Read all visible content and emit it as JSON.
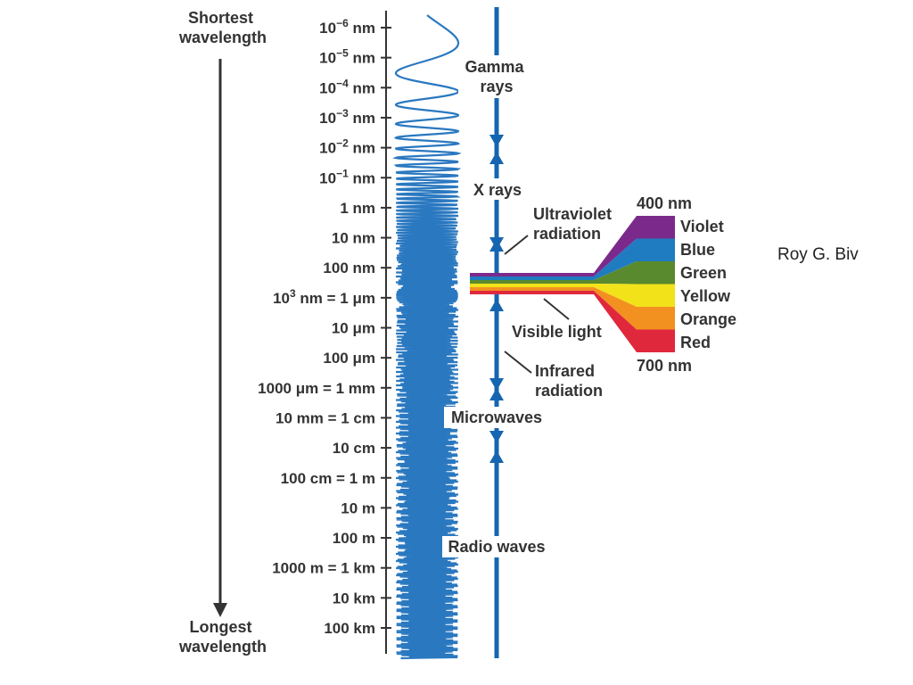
{
  "axis": {
    "top_label": [
      "Shortest",
      "wavelength"
    ],
    "bottom_label": [
      "Longest",
      "wavelength"
    ],
    "ticks": [
      {
        "base": "10",
        "exp": "−6",
        "unit": " nm"
      },
      {
        "base": "10",
        "exp": "−5",
        "unit": " nm"
      },
      {
        "base": "10",
        "exp": "−4",
        "unit": " nm"
      },
      {
        "base": "10",
        "exp": "−3",
        "unit": " nm"
      },
      {
        "base": "10",
        "exp": "−2",
        "unit": " nm"
      },
      {
        "base": "10",
        "exp": "−1",
        "unit": " nm"
      },
      {
        "text": "1 nm"
      },
      {
        "text": "10 nm"
      },
      {
        "text": "100 nm"
      },
      {
        "base": "10",
        "exp": "3",
        "unit": " nm = 1 μm"
      },
      {
        "text": "10 μm"
      },
      {
        "text": "100 μm"
      },
      {
        "text": "1000 μm = 1 mm"
      },
      {
        "text": "10 mm = 1 cm"
      },
      {
        "text": "10 cm"
      },
      {
        "text": "100 cm = 1 m"
      },
      {
        "text": "10 m"
      },
      {
        "text": "100 m"
      },
      {
        "text": "1000 m = 1 km"
      },
      {
        "text": "10 km"
      },
      {
        "text": "100 km"
      }
    ]
  },
  "bands": {
    "gamma": [
      "Gamma",
      "rays"
    ],
    "xray": "X rays",
    "uv": [
      "Ultraviolet",
      "radiation"
    ],
    "visible": "Visible light",
    "ir": [
      "Infrared",
      "radiation"
    ],
    "microwave": "Microwaves",
    "radio": "Radio waves"
  },
  "spectrum": {
    "top_nm": "400 nm",
    "bottom_nm": "700 nm",
    "colors": [
      {
        "name": "Violet",
        "hex": "#7b2a8c"
      },
      {
        "name": "Blue",
        "hex": "#1f7cc0"
      },
      {
        "name": "Green",
        "hex": "#5a8a2e"
      },
      {
        "name": "Yellow",
        "hex": "#f2e21a"
      },
      {
        "name": "Orange",
        "hex": "#f29120"
      },
      {
        "name": "Red",
        "hex": "#e0283c"
      }
    ]
  },
  "note": "Roy G. Biv",
  "colors": {
    "wave": "#2a78c0",
    "band_line": "#1565b0",
    "axis": "#333333"
  }
}
